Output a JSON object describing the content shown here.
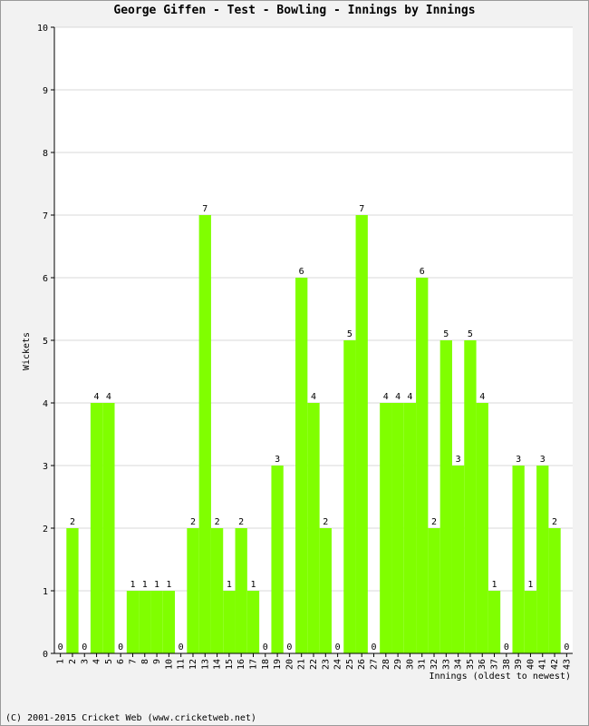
{
  "chart_data": {
    "type": "bar",
    "title": "George Giffen - Test - Bowling - Innings by Innings",
    "xlabel": "Innings (oldest to newest)",
    "ylabel": "Wickets",
    "ylim": [
      0,
      10
    ],
    "yticks": [
      0,
      1,
      2,
      3,
      4,
      5,
      6,
      7,
      8,
      9,
      10
    ],
    "grid": true,
    "bar_color": "#80ff00",
    "categories": [
      "1",
      "2",
      "3",
      "4",
      "5",
      "6",
      "7",
      "8",
      "9",
      "10",
      "11",
      "12",
      "13",
      "14",
      "15",
      "16",
      "17",
      "18",
      "19",
      "20",
      "21",
      "22",
      "23",
      "24",
      "25",
      "26",
      "27",
      "28",
      "29",
      "30",
      "31",
      "32",
      "33",
      "34",
      "35",
      "36",
      "37",
      "38",
      "39",
      "40",
      "41",
      "42",
      "43"
    ],
    "values": [
      0,
      2,
      0,
      4,
      4,
      0,
      1,
      1,
      1,
      1,
      0,
      2,
      7,
      2,
      1,
      2,
      1,
      0,
      3,
      0,
      6,
      4,
      2,
      0,
      5,
      7,
      0,
      4,
      4,
      4,
      6,
      2,
      5,
      3,
      5,
      4,
      1,
      0,
      3,
      1,
      3,
      2,
      0
    ]
  },
  "footer": "(C) 2001-2015 Cricket Web (www.cricketweb.net)"
}
